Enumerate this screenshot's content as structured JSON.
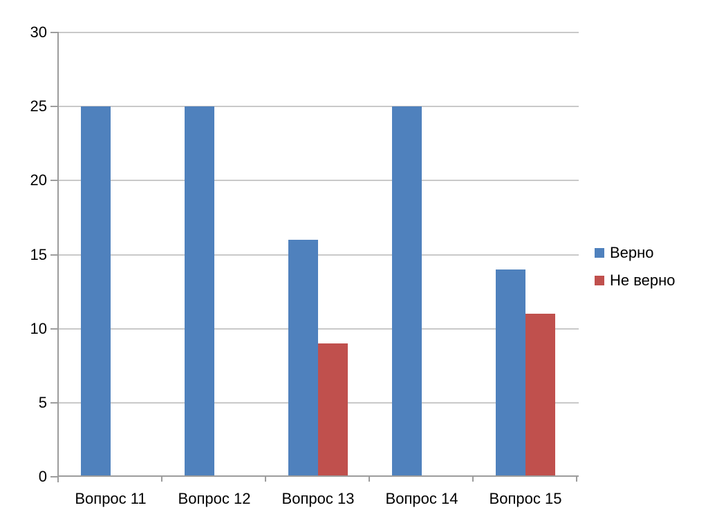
{
  "chart_data": {
    "type": "bar",
    "title": "",
    "xlabel": "",
    "ylabel": "",
    "categories": [
      "Вопрос 11",
      "Вопрос 12",
      "Вопрос 13",
      "Вопрос 14",
      "Вопрос 15"
    ],
    "series": [
      {
        "name": "Верно",
        "color": "#4F81BD",
        "values": [
          25,
          25,
          16,
          25,
          14
        ]
      },
      {
        "name": "Не верно",
        "color": "#C0504D",
        "values": [
          0,
          0,
          9,
          0,
          11
        ]
      }
    ],
    "ylim": [
      0,
      30
    ],
    "yticks": [
      30,
      25,
      20,
      15,
      10,
      5,
      0
    ],
    "grid": true,
    "legend_position": "right",
    "colors": {
      "background": "#FFFFFF",
      "gridline": "#C9C9C9",
      "axis": "#9C9C9C",
      "text": "#000000"
    }
  }
}
